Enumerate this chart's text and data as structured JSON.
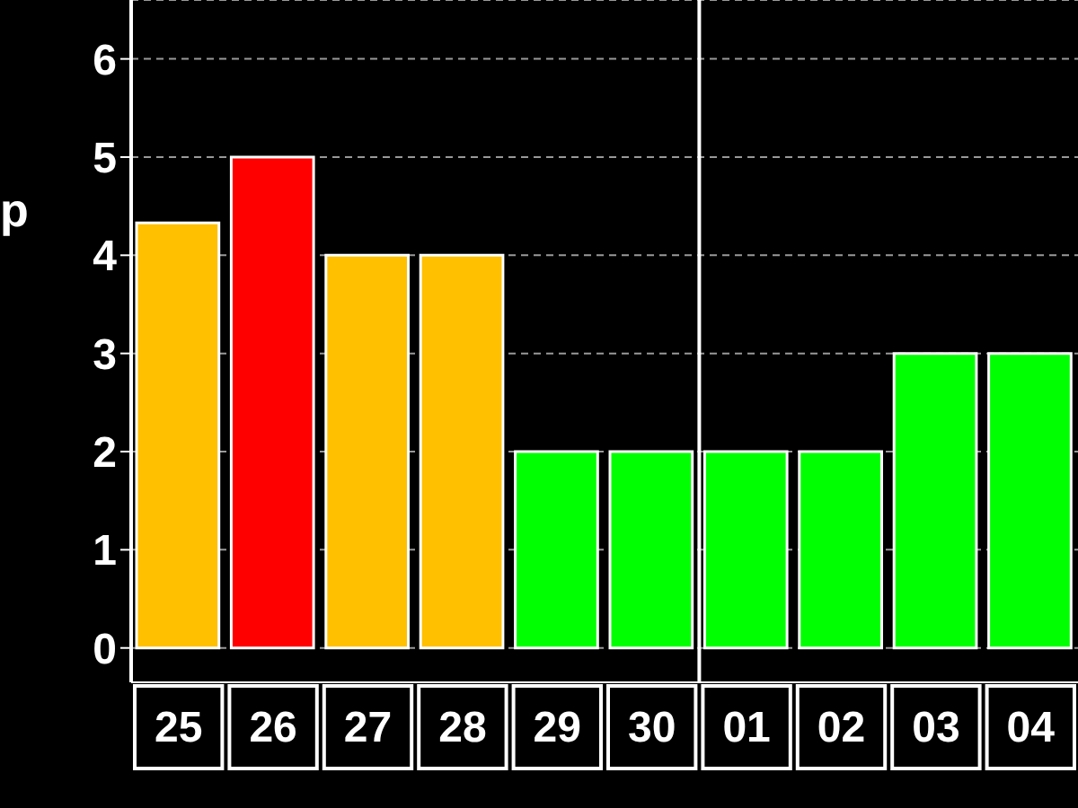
{
  "chart_data": {
    "type": "bar",
    "ylabel": "p",
    "categories": [
      "25",
      "26",
      "27",
      "28",
      "29",
      "30",
      "01",
      "02",
      "03",
      "04"
    ],
    "values": [
      4.33,
      5,
      4,
      4,
      2,
      2,
      2,
      2,
      3,
      3
    ],
    "colors": [
      "#ffc000",
      "#ff0000",
      "#ffc000",
      "#ffc000",
      "#00ff00",
      "#00ff00",
      "#00ff00",
      "#00ff00",
      "#00ff00",
      "#00ff00"
    ],
    "ylim": [
      -0.35,
      6.6
    ],
    "yticks": [
      0,
      1,
      2,
      3,
      4,
      5,
      6
    ],
    "grid": "y",
    "ref_lines": [
      {
        "axis": "x",
        "value": "01",
        "color": "#ffffff"
      }
    ]
  }
}
